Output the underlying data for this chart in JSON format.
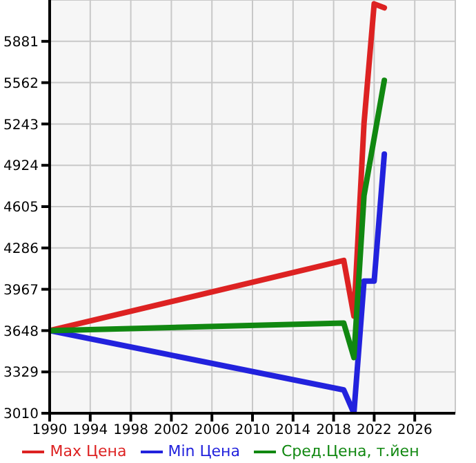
{
  "chart_data": {
    "type": "line",
    "xlim": [
      1990,
      2030
    ],
    "xticks": [
      1990,
      1994,
      1998,
      2002,
      2006,
      2010,
      2014,
      2018,
      2022,
      2026
    ],
    "ylim": [
      3010,
      6200
    ],
    "yticks": [
      3010,
      3329,
      3648,
      3967,
      4286,
      4605,
      4924,
      5243,
      5562,
      5881
    ],
    "grid": true,
    "legend": "bottom",
    "marker": "none",
    "line_style": "solid",
    "series": [
      {
        "name": "Max Цена",
        "color": "#dd2222",
        "x": [
          1990,
          2019,
          2020,
          2021,
          2022,
          2023
        ],
        "values": [
          3648,
          4190,
          3760,
          5250,
          6170,
          6140
        ]
      },
      {
        "name": "Min Цена",
        "color": "#2222dd",
        "x": [
          1990,
          2019,
          2020,
          2021,
          2022,
          2023
        ],
        "values": [
          3648,
          3190,
          3010,
          4030,
          4030,
          5010
        ]
      },
      {
        "name": "Сред.Цена, т.йен",
        "color": "#118811",
        "x": [
          1990,
          2019,
          2020,
          2021,
          2023
        ],
        "values": [
          3648,
          3706,
          3440,
          4690,
          5580
        ]
      }
    ]
  }
}
